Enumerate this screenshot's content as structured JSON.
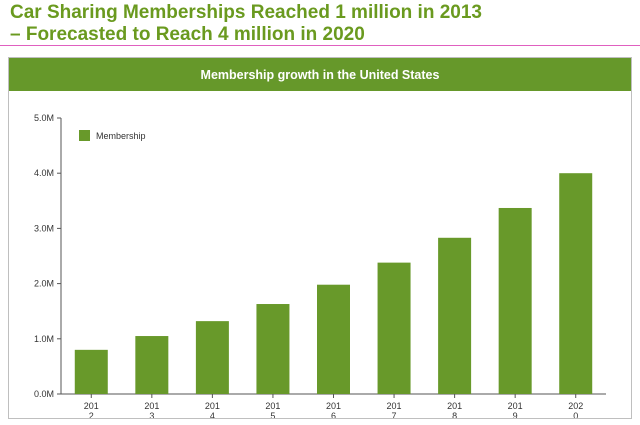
{
  "headline": {
    "line1": "Car Sharing Memberships Reached 1 million in 2013",
    "line2": "– Forecasted to Reach 4 million in 2020"
  },
  "colors": {
    "headline": "#6a9a1f",
    "bar": "#68992a",
    "title_bar": "#66982a",
    "rule": "#e060c0"
  },
  "chart_data": {
    "type": "bar",
    "title": "Membership growth in the United States",
    "categories": [
      "201\n2",
      "201\n3",
      "201\n4",
      "201\n5",
      "201\n6",
      "201\n7",
      "201\n8",
      "201\n9",
      "202\n0"
    ],
    "series": [
      {
        "name": "Membership",
        "values": [
          0.8,
          1.05,
          1.32,
          1.63,
          1.98,
          2.38,
          2.83,
          3.37,
          4.0
        ]
      }
    ],
    "yticks": [
      "0.0M",
      "1.0M",
      "2.0M",
      "3.0M",
      "4.0M",
      "5.0M"
    ],
    "ylim": [
      0,
      5
    ],
    "xlabel": "",
    "ylabel": "",
    "legend": "top-left",
    "grid": false
  }
}
